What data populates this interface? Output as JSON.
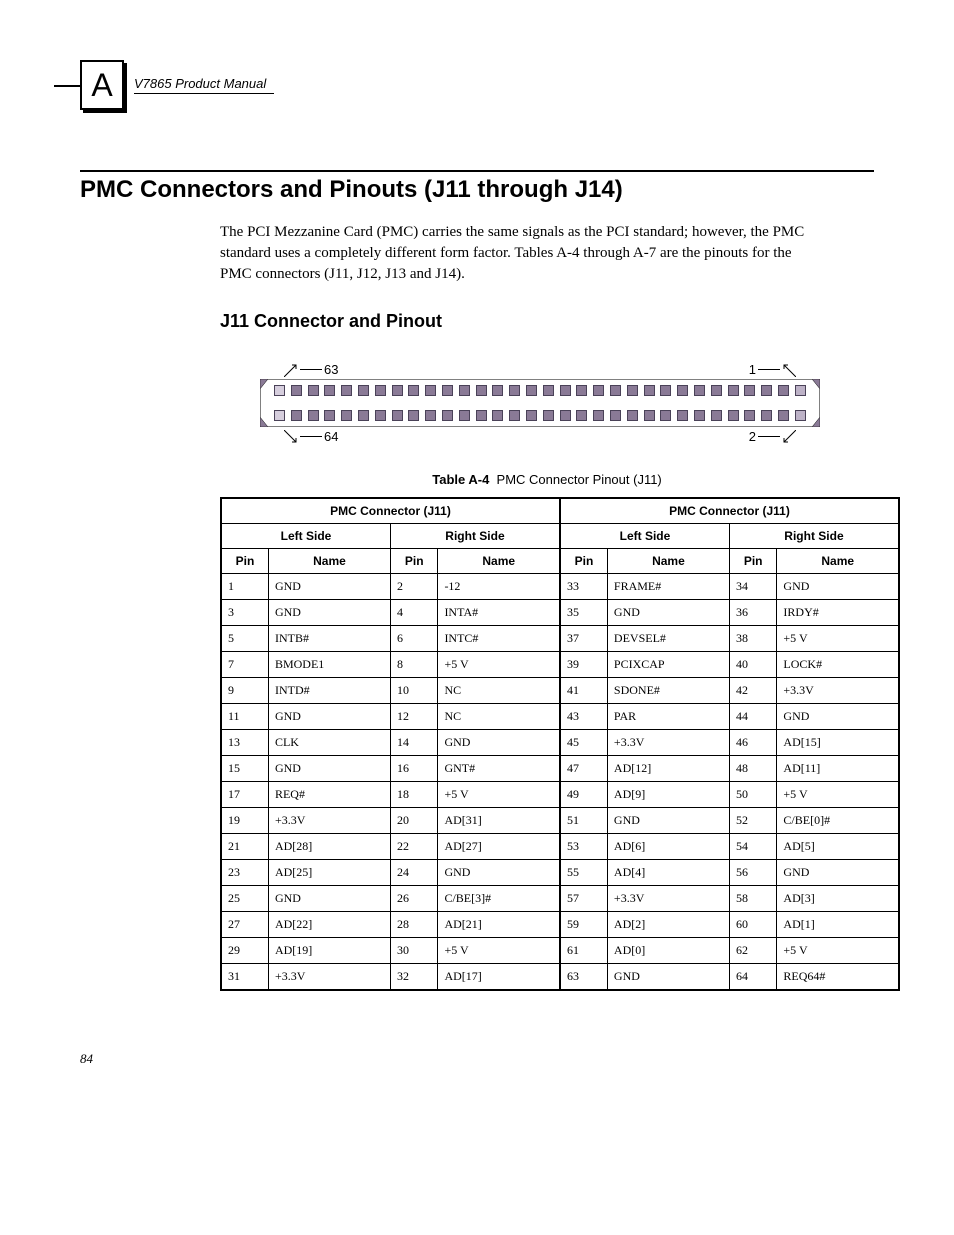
{
  "header": {
    "badge_letter": "A",
    "manual_name": "V7865 Product Manual"
  },
  "section": {
    "title": "PMC Connectors and Pinouts (J11 through J14)",
    "paragraph": "The PCI Mezzanine Card (PMC) carries the same signals as the PCI standard; however, the PMC standard uses a completely different form factor. Tables A-4 through A-7 are the pinouts for the PMC connectors (J11, J12, J13 and J14).",
    "subheading": "J11 Connector and Pinout"
  },
  "connector_diagram": {
    "top_left_label": "63",
    "top_right_label": "1",
    "bottom_left_label": "64",
    "bottom_right_label": "2",
    "pins_per_row": 32,
    "pin_fill": "#8a7a96",
    "pin_border": "#4a4258",
    "end_fill_light": "#d6cedd",
    "outline_color": "#000000"
  },
  "table": {
    "caption_prefix": "Table A-4",
    "caption_text": "PMC Connector Pinout (J11)",
    "group_header": "PMC Connector (J11)",
    "side_left": "Left Side",
    "side_right": "Right Side",
    "col_pin": "Pin",
    "col_name": "Name",
    "rows": [
      {
        "p1": "1",
        "n1": "GND",
        "p2": "2",
        "n2": "-12",
        "p3": "33",
        "n3": "FRAME#",
        "p4": "34",
        "n4": "GND"
      },
      {
        "p1": "3",
        "n1": "GND",
        "p2": "4",
        "n2": "INTA#",
        "p3": "35",
        "n3": "GND",
        "p4": "36",
        "n4": "IRDY#"
      },
      {
        "p1": "5",
        "n1": "INTB#",
        "p2": "6",
        "n2": "INTC#",
        "p3": "37",
        "n3": "DEVSEL#",
        "p4": "38",
        "n4": "+5 V"
      },
      {
        "p1": "7",
        "n1": "BMODE1",
        "p2": "8",
        "n2": "+5 V",
        "p3": "39",
        "n3": "PCIXCAP",
        "p4": "40",
        "n4": "LOCK#"
      },
      {
        "p1": "9",
        "n1": "INTD#",
        "p2": "10",
        "n2": "NC",
        "p3": "41",
        "n3": "SDONE#",
        "p4": "42",
        "n4": "+3.3V"
      },
      {
        "p1": "11",
        "n1": "GND",
        "p2": "12",
        "n2": "NC",
        "p3": "43",
        "n3": "PAR",
        "p4": "44",
        "n4": "GND"
      },
      {
        "p1": "13",
        "n1": "CLK",
        "p2": "14",
        "n2": "GND",
        "p3": "45",
        "n3": "+3.3V",
        "p4": "46",
        "n4": "AD[15]"
      },
      {
        "p1": "15",
        "n1": "GND",
        "p2": "16",
        "n2": "GNT#",
        "p3": "47",
        "n3": "AD[12]",
        "p4": "48",
        "n4": "AD[11]"
      },
      {
        "p1": "17",
        "n1": "REQ#",
        "p2": "18",
        "n2": "+5 V",
        "p3": "49",
        "n3": "AD[9]",
        "p4": "50",
        "n4": "+5 V"
      },
      {
        "p1": "19",
        "n1": "+3.3V",
        "p2": "20",
        "n2": "AD[31]",
        "p3": "51",
        "n3": "GND",
        "p4": "52",
        "n4": "C/BE[0]#"
      },
      {
        "p1": "21",
        "n1": "AD[28]",
        "p2": "22",
        "n2": "AD[27]",
        "p3": "53",
        "n3": "AD[6]",
        "p4": "54",
        "n4": "AD[5]"
      },
      {
        "p1": "23",
        "n1": "AD[25]",
        "p2": "24",
        "n2": "GND",
        "p3": "55",
        "n3": "AD[4]",
        "p4": "56",
        "n4": "GND"
      },
      {
        "p1": "25",
        "n1": "GND",
        "p2": "26",
        "n2": "C/BE[3]#",
        "p3": "57",
        "n3": "+3.3V",
        "p4": "58",
        "n4": "AD[3]"
      },
      {
        "p1": "27",
        "n1": "AD[22]",
        "p2": "28",
        "n2": "AD[21]",
        "p3": "59",
        "n3": "AD[2]",
        "p4": "60",
        "n4": "AD[1]"
      },
      {
        "p1": "29",
        "n1": "AD[19]",
        "p2": "30",
        "n2": "+5 V",
        "p3": "61",
        "n3": "AD[0]",
        "p4": "62",
        "n4": "+5 V"
      },
      {
        "p1": "31",
        "n1": "+3.3V",
        "p2": "32",
        "n2": "AD[17]",
        "p3": "63",
        "n3": "GND",
        "p4": "64",
        "n4": "REQ64#"
      }
    ]
  },
  "page_number": "84",
  "colors": {
    "text": "#000000",
    "background": "#ffffff",
    "connector_fill": "#8a7a96"
  }
}
